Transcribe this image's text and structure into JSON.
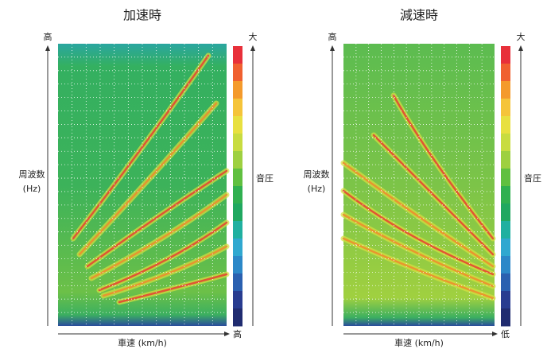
{
  "panels": [
    {
      "title": "加速時",
      "y_axis_label": "周波数",
      "y_axis_unit": "(Hz)",
      "y_high": "高",
      "x_axis_label": "車速 (km/h)",
      "x_end": "高",
      "colorbar_label": "音圧",
      "colorbar_high": "大"
    },
    {
      "title": "減速時",
      "y_axis_label": "周波数",
      "y_axis_unit": "(Hz)",
      "y_high": "高",
      "x_axis_label": "車速 (km/h)",
      "x_end": "低",
      "colorbar_label": "音圧",
      "colorbar_high": "大"
    }
  ]
}
